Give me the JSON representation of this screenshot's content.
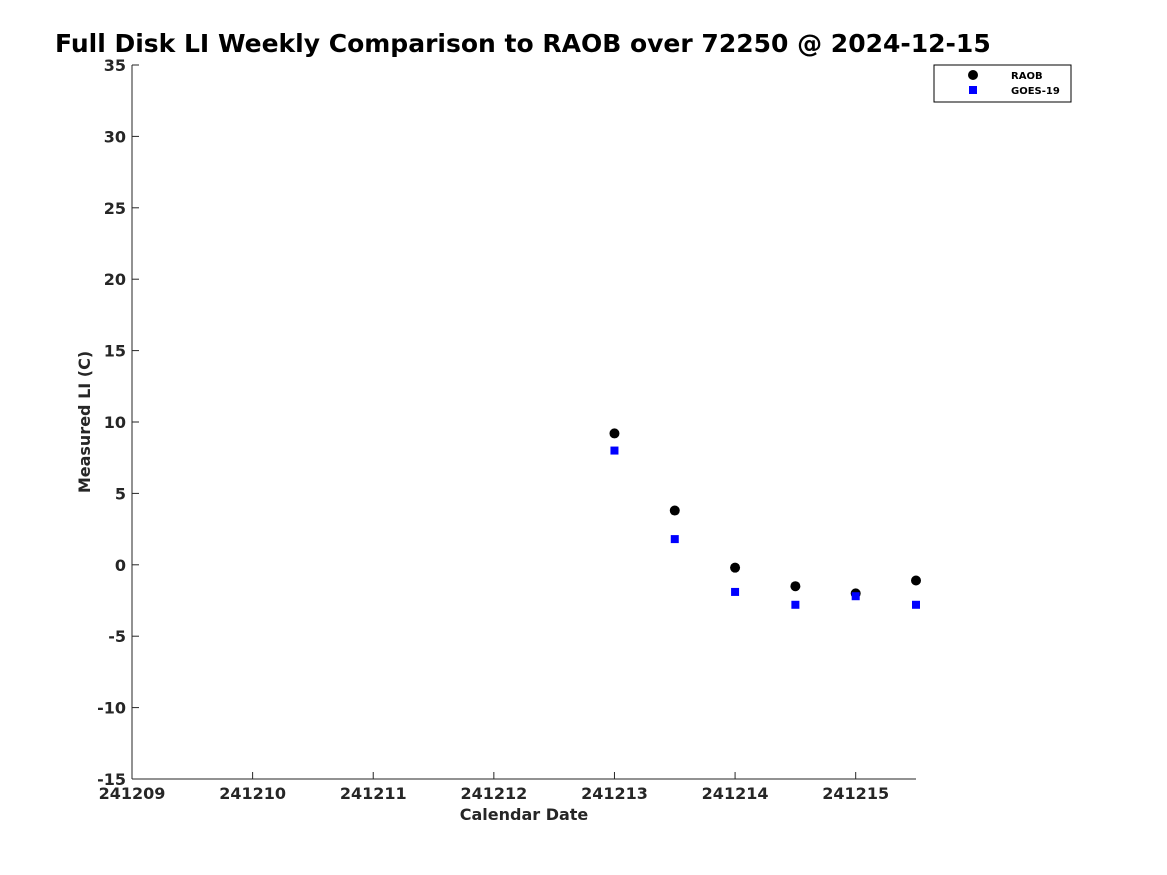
{
  "chart_data": {
    "type": "scatter",
    "title": "Full Disk LI Weekly Comparison to RAOB over 72250 @ 2024-12-15",
    "xlabel": "Calendar Date",
    "ylabel": "Measured LI (C)",
    "xlim": [
      241209,
      241215.5
    ],
    "ylim": [
      -15,
      35
    ],
    "x_ticks": [
      241209,
      241210,
      241211,
      241212,
      241213,
      241214,
      241215
    ],
    "x_tick_labels": [
      "241209",
      "241210",
      "241211",
      "241212",
      "241213",
      "241214",
      "241215"
    ],
    "y_ticks": [
      -15,
      -10,
      -5,
      0,
      5,
      10,
      15,
      20,
      25,
      30,
      35
    ],
    "y_tick_labels": [
      "-15",
      "-10",
      "-5",
      "0",
      "5",
      "10",
      "15",
      "20",
      "25",
      "30",
      "35"
    ],
    "grid": false,
    "legend_position": "top-right",
    "series": [
      {
        "name": "RAOB",
        "color": "#000000",
        "marker": "circle",
        "x": [
          241213.0,
          241213.5,
          241214.0,
          241214.5,
          241215.0,
          241215.5
        ],
        "y": [
          9.2,
          3.8,
          -0.2,
          -1.5,
          -2.0,
          -1.1
        ]
      },
      {
        "name": "GOES-19",
        "color": "#0000ff",
        "marker": "square",
        "x": [
          241213.0,
          241213.5,
          241214.0,
          241214.5,
          241215.0,
          241215.5
        ],
        "y": [
          8.0,
          1.8,
          -1.9,
          -2.8,
          -2.2,
          -2.8
        ]
      }
    ]
  }
}
